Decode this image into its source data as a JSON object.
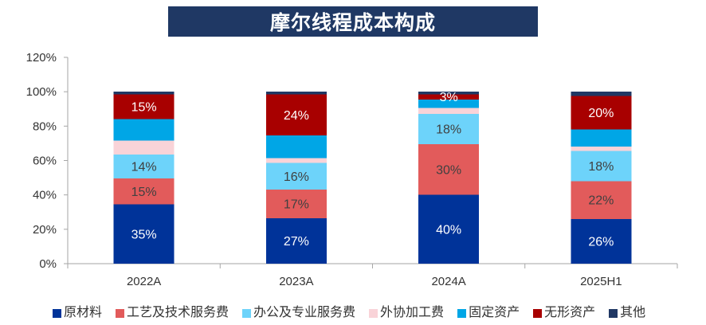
{
  "chart_data": {
    "type": "bar",
    "stacked": true,
    "title": "摩尔线程成本构成",
    "xlabel": "",
    "ylabel": "",
    "categories": [
      "2022A",
      "2023A",
      "2024A",
      "2025H1"
    ],
    "ylim": [
      0,
      120
    ],
    "yticks": [
      0,
      20,
      40,
      60,
      80,
      100,
      120
    ],
    "ytick_labels": [
      "0%",
      "20%",
      "40%",
      "60%",
      "80%",
      "100%",
      "120%"
    ],
    "grid": false,
    "legend_position": "bottom",
    "series": [
      {
        "name": "原材料",
        "color": "#003399",
        "label_color": "#ffffff",
        "values": [
          34.5,
          26.5,
          40,
          26
        ],
        "labels": [
          "35%",
          "27%",
          "40%",
          "26%"
        ]
      },
      {
        "name": "工艺及技术服务费",
        "color": "#E25B5B",
        "label_color": "#404040",
        "values": [
          15,
          16.5,
          29.5,
          22
        ],
        "labels": [
          "15%",
          "17%",
          "30%",
          "22%"
        ]
      },
      {
        "name": "办公及专业服务费",
        "color": "#6DD3FA",
        "label_color": "#404040",
        "values": [
          14,
          15.5,
          17.5,
          17.5
        ],
        "labels": [
          "14%",
          "16%",
          "18%",
          "18%"
        ]
      },
      {
        "name": "外协加工费",
        "color": "#F9D3D8",
        "label_color": "#404040",
        "values": [
          8,
          3,
          3.5,
          2.5
        ],
        "labels": [
          null,
          null,
          null,
          null
        ]
      },
      {
        "name": "固定资产",
        "color": "#00A6E6",
        "label_color": "#ffffff",
        "values": [
          12.5,
          13,
          5,
          10
        ],
        "labels": [
          null,
          null,
          null,
          null
        ]
      },
      {
        "name": "无形资产",
        "color": "#A80000",
        "label_color": "#ffffff",
        "values": [
          14.5,
          24,
          3,
          19.5
        ],
        "labels": [
          "15%",
          "24%",
          "3%",
          "20%"
        ]
      },
      {
        "name": "其他",
        "color": "#203864",
        "label_color": "#ffffff",
        "values": [
          1.5,
          1.5,
          1.5,
          2.5
        ],
        "labels": [
          null,
          null,
          null,
          null
        ]
      }
    ]
  }
}
